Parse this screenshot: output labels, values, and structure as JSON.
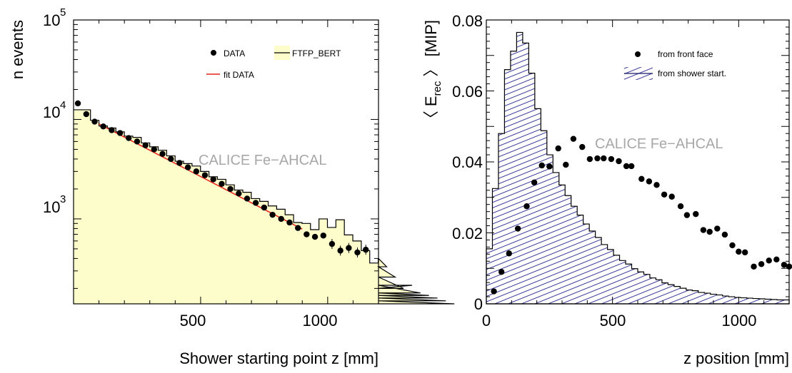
{
  "chart_data": [
    {
      "type": "histogram",
      "id": "left",
      "ylabel": "n events",
      "xlabel": "Shower starting point z [mm]",
      "x_ticks": [
        "500",
        "1000"
      ],
      "x_tick_values": [
        500,
        1000
      ],
      "y_tick_labels": [
        {
          "base": "10",
          "exp": "3",
          "value": 1000
        },
        {
          "base": "10",
          "exp": "4",
          "value": 10000
        },
        {
          "base": "10",
          "exp": "5",
          "value": 100000
        }
      ],
      "xlim": [
        0,
        1200
      ],
      "ylim": [
        140,
        100000
      ],
      "y_scale": "log",
      "watermark": "CALICE Fe−AHCAL",
      "legend": {
        "position": "top-right",
        "data_label": "DATA",
        "fit_label": "fit DATA",
        "mc_label": "FTFP_BERT"
      },
      "colors": {
        "mc_fill": "#fdfdcb",
        "fit": "#e8201a",
        "data": "#000000",
        "frame": "#000000"
      },
      "mc_series": {
        "name": "FTFP_BERT",
        "bin_width": 33.3,
        "x_start": 0,
        "values": [
          12500,
          12500,
          9800,
          8600,
          8200,
          7500,
          6800,
          6600,
          5800,
          5300,
          4900,
          4300,
          3800,
          3600,
          3400,
          3000,
          2650,
          2500,
          2200,
          1950,
          1850,
          1600,
          1500,
          1350,
          1250,
          1100,
          920,
          900,
          780,
          1000,
          820,
          980,
          690,
          600,
          480,
          360,
          400,
          330,
          260,
          200,
          215,
          180,
          170,
          160,
          150,
          140
        ]
      },
      "data_series": {
        "name": "DATA",
        "x": [
          17,
          50,
          83,
          117,
          150,
          183,
          217,
          250,
          283,
          317,
          350,
          383,
          417,
          450,
          483,
          517,
          550,
          583,
          617,
          650,
          683,
          717,
          750,
          783,
          817,
          850,
          883,
          917,
          950,
          983,
          1017,
          1050,
          1083,
          1117,
          1150
        ],
        "y": [
          14500,
          11300,
          9500,
          8500,
          7800,
          7300,
          6500,
          6000,
          5500,
          5000,
          4500,
          4000,
          3650,
          3300,
          3000,
          2750,
          2500,
          2250,
          2000,
          1800,
          1600,
          1450,
          1300,
          1100,
          1000,
          920,
          810,
          700,
          660,
          680,
          560,
          480,
          510,
          460,
          490
        ]
      },
      "fit_series": {
        "name": "fit DATA",
        "x": [
          100,
          900
        ],
        "y": [
          9000,
          790
        ]
      }
    },
    {
      "type": "histogram",
      "id": "right",
      "ylabel_prefix": "〈 E",
      "ylabel_sub": "rec",
      "ylabel_suffix": " 〉 [MIP]",
      "xlabel": "z position [mm]",
      "x_ticks": [
        "0",
        "500",
        "1000"
      ],
      "x_tick_values": [
        0,
        500,
        1000
      ],
      "y_ticks": [
        "0",
        "0.02",
        "0.04",
        "0.06",
        "0.08"
      ],
      "y_tick_values": [
        0,
        0.02,
        0.04,
        0.06,
        0.08
      ],
      "xlim": [
        0,
        1200
      ],
      "ylim": [
        0,
        0.08
      ],
      "y_scale": "linear",
      "watermark": "CALICE Fe−AHCAL",
      "legend": {
        "position": "top-right",
        "data_label": "from front face",
        "mc_label": "from shower start."
      },
      "colors": {
        "hatch": "#3a3a9a",
        "data": "#000000",
        "frame": "#000000"
      },
      "mc_series": {
        "name": "from shower start.",
        "bin_width": 24,
        "x_start": 0,
        "values": [
          0.0155,
          0.0325,
          0.048,
          0.066,
          0.0712,
          0.0765,
          0.0735,
          0.065,
          0.055,
          0.0488,
          0.042,
          0.037,
          0.0335,
          0.0305,
          0.0275,
          0.025,
          0.0225,
          0.0205,
          0.0187,
          0.0167,
          0.0153,
          0.0137,
          0.0122,
          0.0112,
          0.0099,
          0.009,
          0.0083,
          0.0073,
          0.0068,
          0.0059,
          0.0054,
          0.0049,
          0.0044,
          0.0039,
          0.0037,
          0.0032,
          0.003,
          0.0027,
          0.0025,
          0.0022,
          0.002,
          0.0018,
          0.0017,
          0.0016,
          0.0015,
          0.0014,
          0.0013,
          0.0012,
          0.0011,
          0.0011
        ]
      },
      "data_series": {
        "name": "from front face",
        "x": [
          30,
          60,
          90,
          125,
          160,
          190,
          220,
          250,
          285,
          315,
          345,
          380,
          410,
          440,
          465,
          495,
          525,
          555,
          575,
          615,
          645,
          675,
          705,
          735,
          770,
          795,
          830,
          860,
          885,
          915,
          945,
          975,
          1000,
          1025,
          1060,
          1090,
          1120,
          1150,
          1180,
          1200
        ],
        "y": [
          0.0035,
          0.009,
          0.0142,
          0.0212,
          0.0275,
          0.0342,
          0.039,
          0.0387,
          0.0438,
          0.0392,
          0.0465,
          0.0442,
          0.0408,
          0.041,
          0.041,
          0.0408,
          0.0402,
          0.0388,
          0.0388,
          0.0352,
          0.0345,
          0.0335,
          0.0308,
          0.0302,
          0.0275,
          0.025,
          0.0253,
          0.0208,
          0.0203,
          0.0212,
          0.0195,
          0.0165,
          0.0147,
          0.0145,
          0.0105,
          0.0112,
          0.0122,
          0.0125,
          0.011,
          0.0105
        ]
      }
    }
  ]
}
